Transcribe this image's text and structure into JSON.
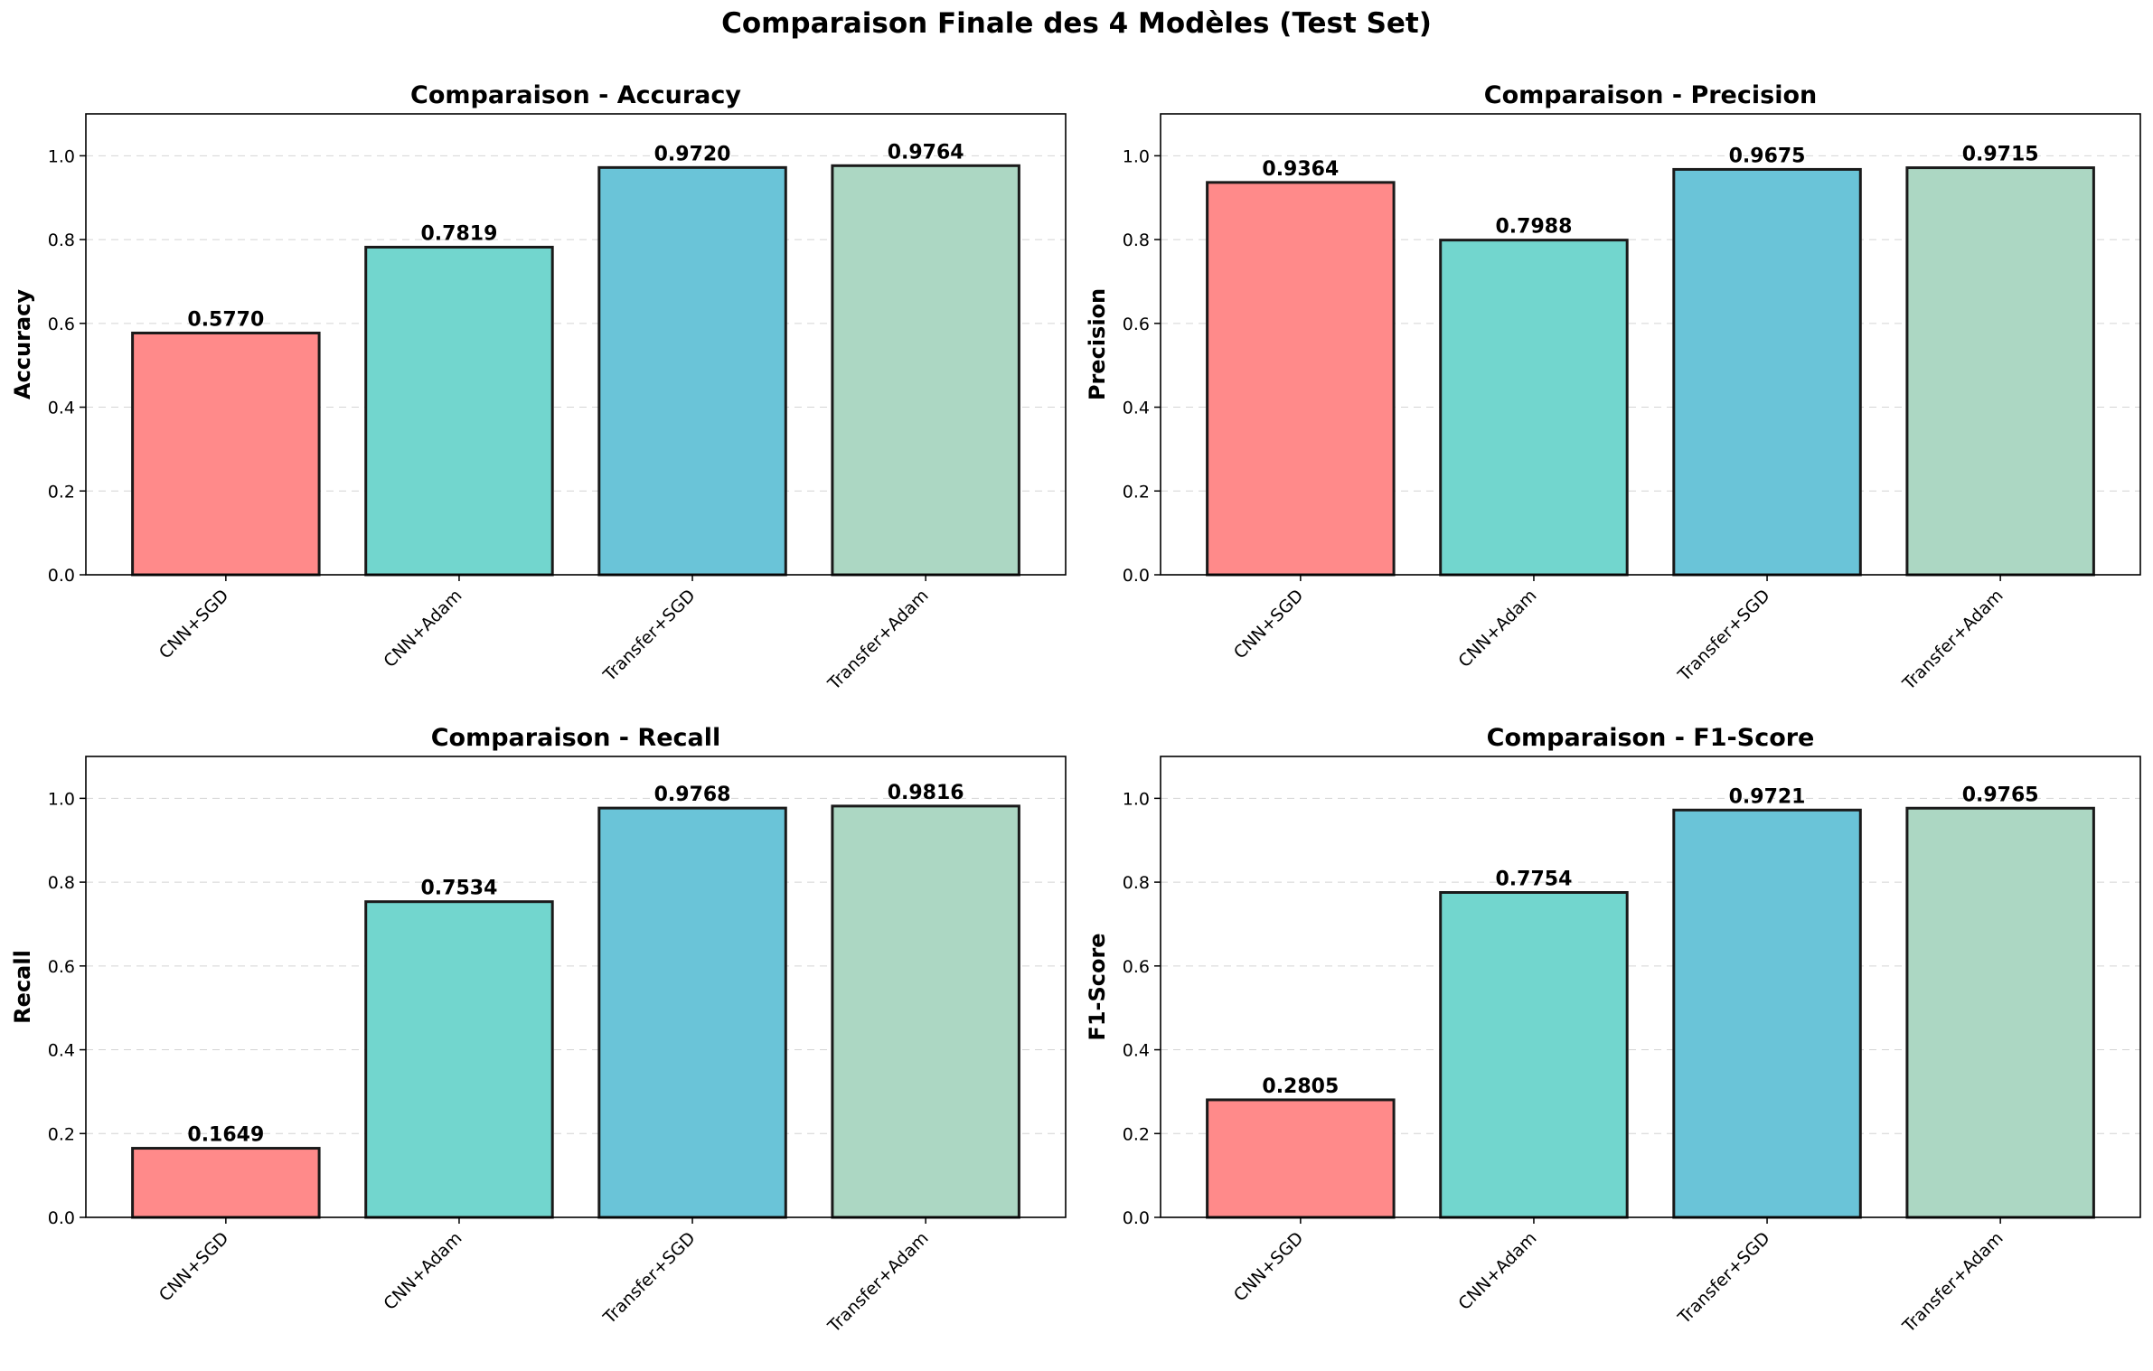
{
  "title": "Comparaison Finale des 4 Modèles (Test Set)",
  "colors": [
    "#ff8a8a",
    "#72d6ce",
    "#6ac4d8",
    "#acd7c3"
  ],
  "chart_data": [
    {
      "type": "bar",
      "title": "Comparaison - Accuracy",
      "xlabel": "",
      "ylabel": "Accuracy",
      "categories": [
        "CNN+SGD",
        "CNN+Adam",
        "Transfer+SGD",
        "Transfer+Adam"
      ],
      "values": [
        0.577,
        0.7819,
        0.972,
        0.9764
      ],
      "value_labels": [
        "0.5770",
        "0.7819",
        "0.9720",
        "0.9764"
      ],
      "ylim": [
        0,
        1.1
      ],
      "yticks": [
        "0.0",
        "0.2",
        "0.4",
        "0.6",
        "0.8",
        "1.0"
      ],
      "grid": true
    },
    {
      "type": "bar",
      "title": "Comparaison - Precision",
      "xlabel": "",
      "ylabel": "Precision",
      "categories": [
        "CNN+SGD",
        "CNN+Adam",
        "Transfer+SGD",
        "Transfer+Adam"
      ],
      "values": [
        0.9364,
        0.7988,
        0.9675,
        0.9715
      ],
      "value_labels": [
        "0.9364",
        "0.7988",
        "0.9675",
        "0.9715"
      ],
      "ylim": [
        0,
        1.1
      ],
      "yticks": [
        "0.0",
        "0.2",
        "0.4",
        "0.6",
        "0.8",
        "1.0"
      ],
      "grid": true
    },
    {
      "type": "bar",
      "title": "Comparaison - Recall",
      "xlabel": "",
      "ylabel": "Recall",
      "categories": [
        "CNN+SGD",
        "CNN+Adam",
        "Transfer+SGD",
        "Transfer+Adam"
      ],
      "values": [
        0.1649,
        0.7534,
        0.9768,
        0.9816
      ],
      "value_labels": [
        "0.1649",
        "0.7534",
        "0.9768",
        "0.9816"
      ],
      "ylim": [
        0,
        1.1
      ],
      "yticks": [
        "0.0",
        "0.2",
        "0.4",
        "0.6",
        "0.8",
        "1.0"
      ],
      "grid": true
    },
    {
      "type": "bar",
      "title": "Comparaison - F1-Score",
      "xlabel": "",
      "ylabel": "F1-Score",
      "categories": [
        "CNN+SGD",
        "CNN+Adam",
        "Transfer+SGD",
        "Transfer+Adam"
      ],
      "values": [
        0.2805,
        0.7754,
        0.9721,
        0.9765
      ],
      "value_labels": [
        "0.2805",
        "0.7754",
        "0.9721",
        "0.9765"
      ],
      "ylim": [
        0,
        1.1
      ],
      "yticks": [
        "0.0",
        "0.2",
        "0.4",
        "0.6",
        "0.8",
        "1.0"
      ],
      "grid": true
    }
  ]
}
